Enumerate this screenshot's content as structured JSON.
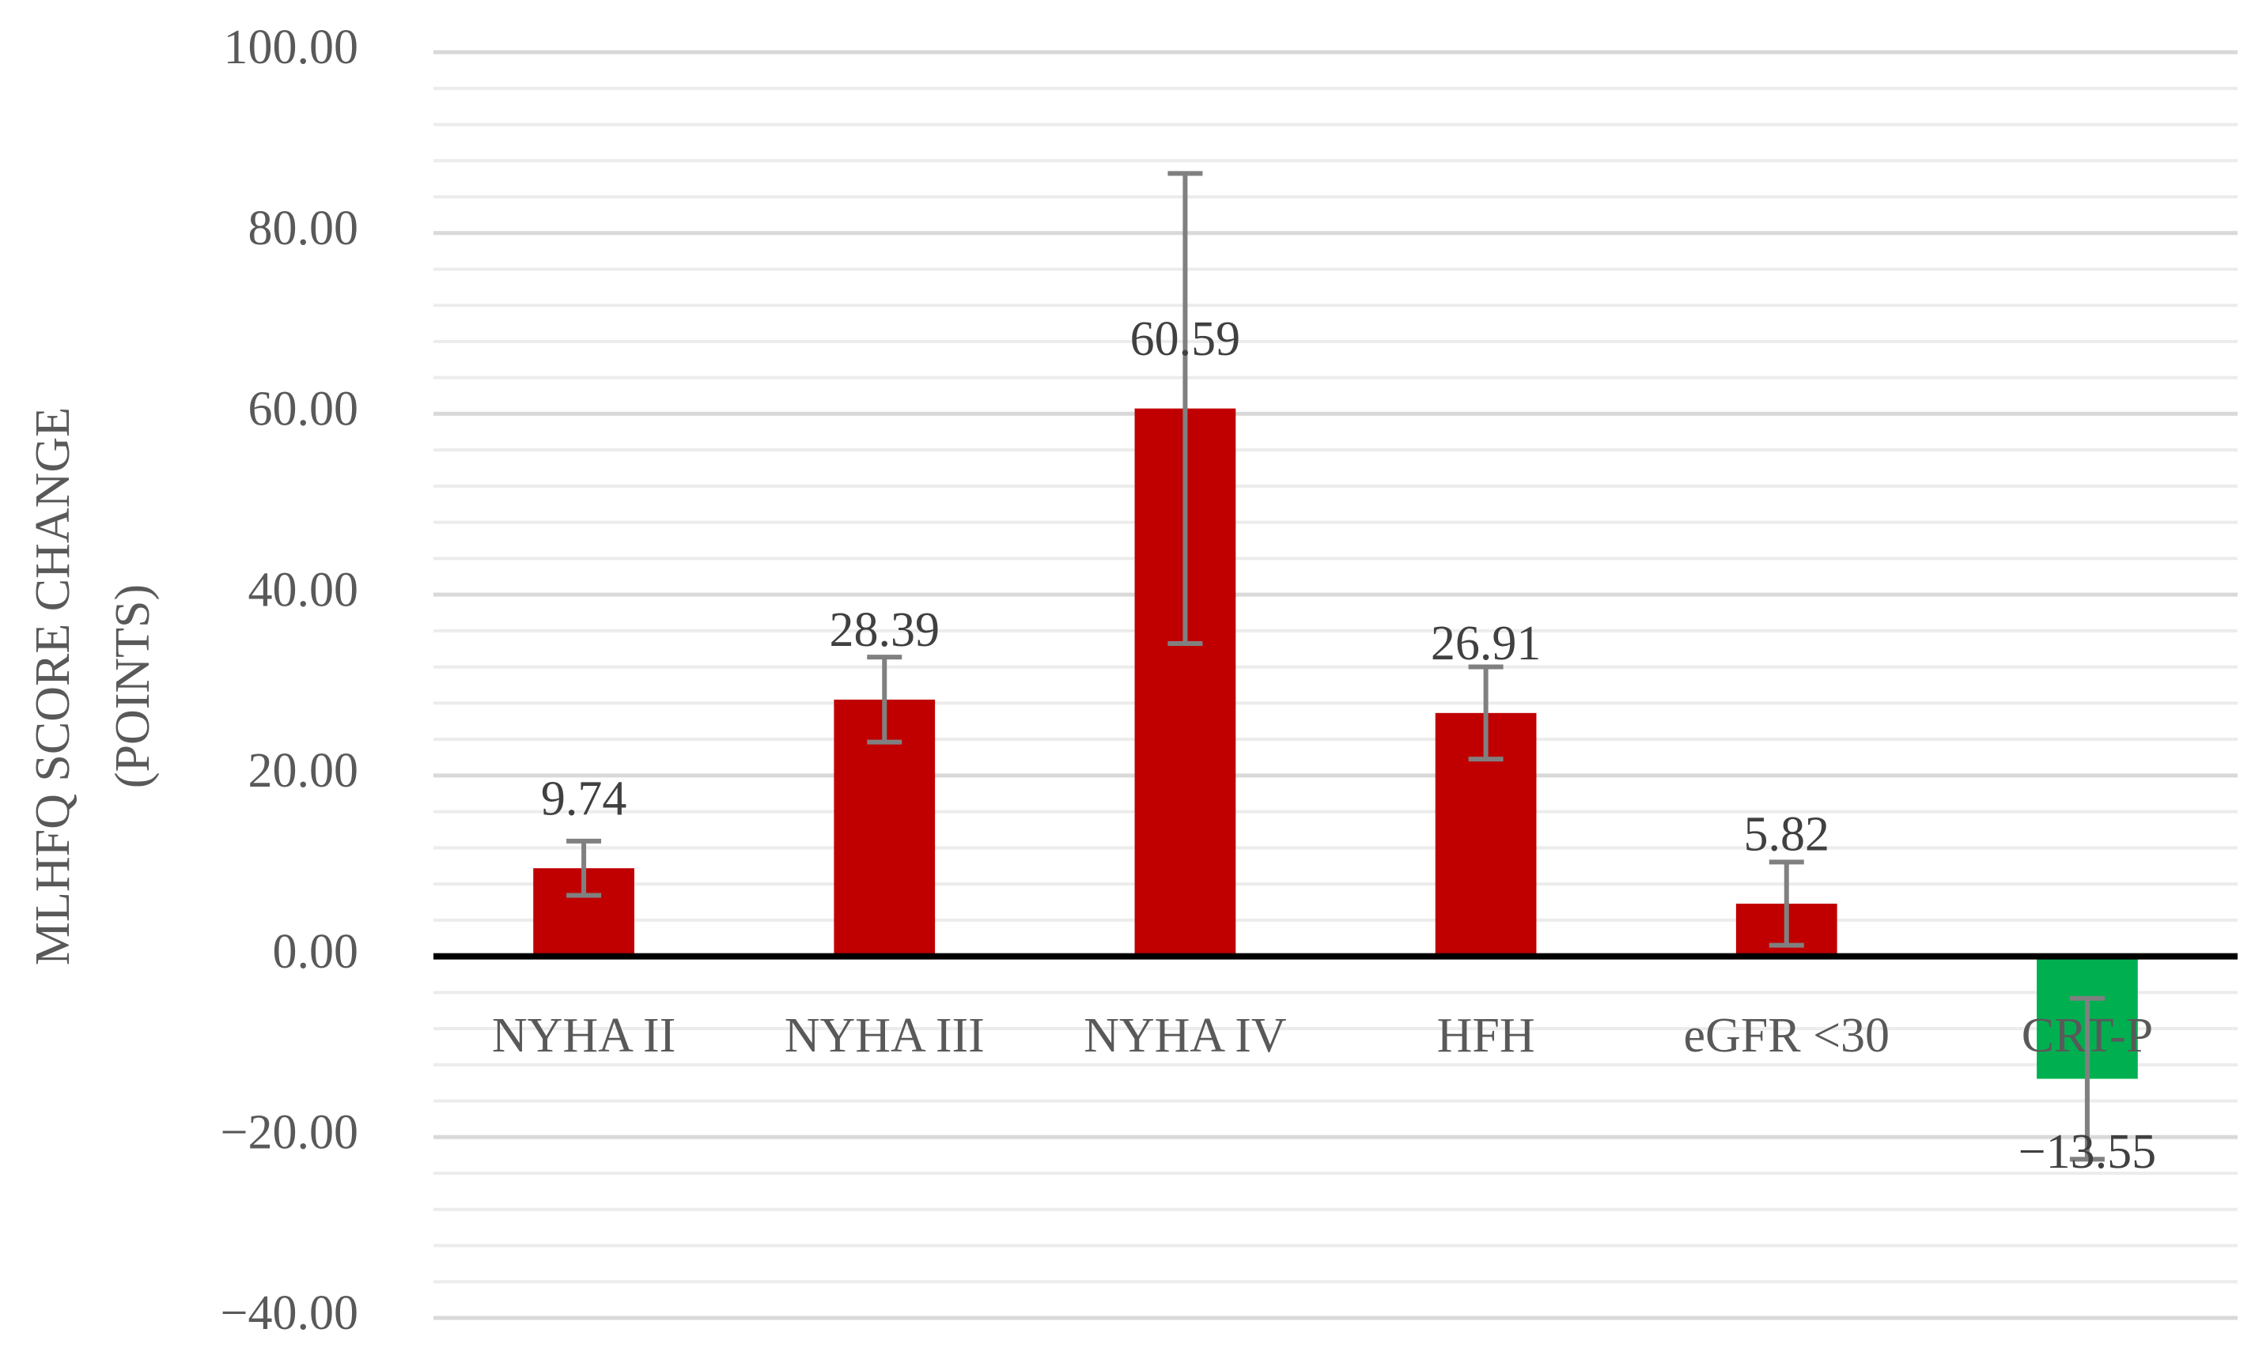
{
  "chart_data": {
    "type": "bar",
    "ylabel": [
      "MLHFQ SCORE CHANGE",
      "(POINTS)"
    ],
    "categories": [
      "NYHA II",
      "NYHA III",
      "NYHA IV",
      "HFH",
      "eGFR <30",
      "CRT-P"
    ],
    "values": [
      9.74,
      28.39,
      60.59,
      26.91,
      5.82,
      -13.55
    ],
    "value_labels": [
      "9.74",
      "28.39",
      "60.59",
      "26.91",
      "5.82",
      "−13.55"
    ],
    "errors": [
      3,
      4.7,
      26,
      5.1,
      4.6,
      8.9
    ],
    "colors": [
      "#c00000",
      "#c00000",
      "#c00000",
      "#c00000",
      "#c00000",
      "#00b050"
    ],
    "error_color": "#808080",
    "ylim": [
      -40,
      100
    ],
    "yticks": [
      {
        "value": -40,
        "label": "−40.00"
      },
      {
        "value": -20,
        "label": "−20.00"
      },
      {
        "value": 0,
        "label": "0.00"
      },
      {
        "value": 20,
        "label": "20.00"
      },
      {
        "value": 40,
        "label": "40.00"
      },
      {
        "value": 60,
        "label": "60.00"
      },
      {
        "value": 80,
        "label": "80.00"
      },
      {
        "value": 100,
        "label": "100.00"
      }
    ],
    "grid": true,
    "minor_grid": true
  }
}
